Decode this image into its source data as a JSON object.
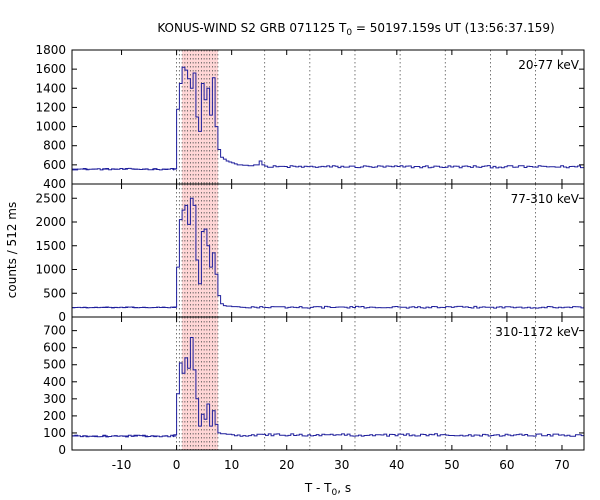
{
  "chart_data": {
    "type": "line",
    "title": {
      "prefix": "KONUS-WIND S2 GRB 071125 T",
      "sub": "0",
      "suffix": " = 50197.159s UT (13:56:37.159)"
    },
    "xlabel": {
      "prefix": "T - T",
      "sub": "0",
      "suffix": ", s"
    },
    "ylabel": "counts / 512 ms",
    "xlim": [
      -19,
      74
    ],
    "xticks": [
      -10,
      0,
      10,
      20,
      30,
      40,
      50,
      60,
      70
    ],
    "shaded_interval": [
      1.0,
      7.5
    ],
    "shade_color": "#ffd6d6",
    "line_color": "#1f1f9c",
    "dashed_line_color": "#1f1f9c",
    "vlines_dense": [
      0,
      0.5,
      1.0,
      1.5,
      2.0,
      2.5,
      3.0,
      3.5,
      4.0,
      4.5,
      5.0,
      5.5,
      6.0,
      6.5,
      7.0,
      7.5
    ],
    "vlines_sparse": [
      16.0,
      24.2,
      32.4,
      40.6,
      48.8,
      57.0,
      65.2
    ],
    "panels": [
      {
        "band": "20-77 keV",
        "ylim": [
          400,
          1800
        ],
        "yticks": [
          400,
          600,
          800,
          1000,
          1200,
          1400,
          1600,
          1800
        ],
        "background": 555,
        "noise": 12,
        "post_level": 580,
        "pre_noise": 8,
        "burst": [
          [
            -0.5,
            560
          ],
          [
            0.0,
            1180
          ],
          [
            0.5,
            1450
          ],
          [
            1.0,
            1620
          ],
          [
            1.5,
            1590
          ],
          [
            2.0,
            1500
          ],
          [
            2.5,
            1400
          ],
          [
            3.0,
            1560
          ],
          [
            3.5,
            1100
          ],
          [
            4.0,
            950
          ],
          [
            4.5,
            1450
          ],
          [
            5.0,
            1280
          ],
          [
            5.5,
            1400
          ],
          [
            6.0,
            1120
          ],
          [
            6.5,
            1510
          ],
          [
            7.0,
            1000
          ],
          [
            7.5,
            760
          ],
          [
            8.0,
            680
          ],
          [
            8.5,
            660
          ],
          [
            9.0,
            640
          ],
          [
            9.5,
            630
          ],
          [
            10.0,
            620
          ],
          [
            10.5,
            610
          ],
          [
            11.0,
            600
          ],
          [
            12.0,
            595
          ],
          [
            13.0,
            590
          ],
          [
            14.0,
            600
          ],
          [
            15.0,
            640
          ],
          [
            15.5,
            600
          ]
        ]
      },
      {
        "band": "77-310 keV",
        "ylim": [
          0,
          2800
        ],
        "yticks": [
          0,
          500,
          1000,
          1500,
          2000,
          2500
        ],
        "background": 200,
        "noise": 18,
        "post_level": 205,
        "pre_noise": 10,
        "burst": [
          [
            -0.5,
            210
          ],
          [
            0.0,
            1050
          ],
          [
            0.5,
            2050
          ],
          [
            1.0,
            2250
          ],
          [
            1.5,
            2350
          ],
          [
            2.0,
            1950
          ],
          [
            2.5,
            2500
          ],
          [
            3.0,
            2350
          ],
          [
            3.5,
            1200
          ],
          [
            4.0,
            700
          ],
          [
            4.5,
            1800
          ],
          [
            5.0,
            1850
          ],
          [
            5.5,
            1500
          ],
          [
            6.0,
            1050
          ],
          [
            6.5,
            1350
          ],
          [
            7.0,
            900
          ],
          [
            7.5,
            450
          ],
          [
            8.0,
            280
          ],
          [
            8.5,
            240
          ],
          [
            9.0,
            230
          ],
          [
            10.0,
            220
          ],
          [
            11.0,
            215
          ]
        ]
      },
      {
        "band": "310-1172 keV",
        "ylim": [
          0,
          780
        ],
        "yticks": [
          0,
          100,
          200,
          300,
          400,
          500,
          600,
          700
        ],
        "background": 82,
        "noise": 7,
        "post_level": 88,
        "pre_noise": 5,
        "burst": [
          [
            -0.5,
            90
          ],
          [
            0.0,
            330
          ],
          [
            0.5,
            510
          ],
          [
            1.0,
            450
          ],
          [
            1.5,
            540
          ],
          [
            2.0,
            480
          ],
          [
            2.5,
            660
          ],
          [
            3.0,
            470
          ],
          [
            3.5,
            300
          ],
          [
            4.0,
            140
          ],
          [
            4.5,
            210
          ],
          [
            5.0,
            180
          ],
          [
            5.5,
            270
          ],
          [
            6.0,
            140
          ],
          [
            6.5,
            230
          ],
          [
            7.0,
            150
          ],
          [
            7.5,
            100
          ],
          [
            8.0,
            95
          ],
          [
            9.0,
            92
          ],
          [
            10.0,
            90
          ]
        ]
      }
    ]
  }
}
